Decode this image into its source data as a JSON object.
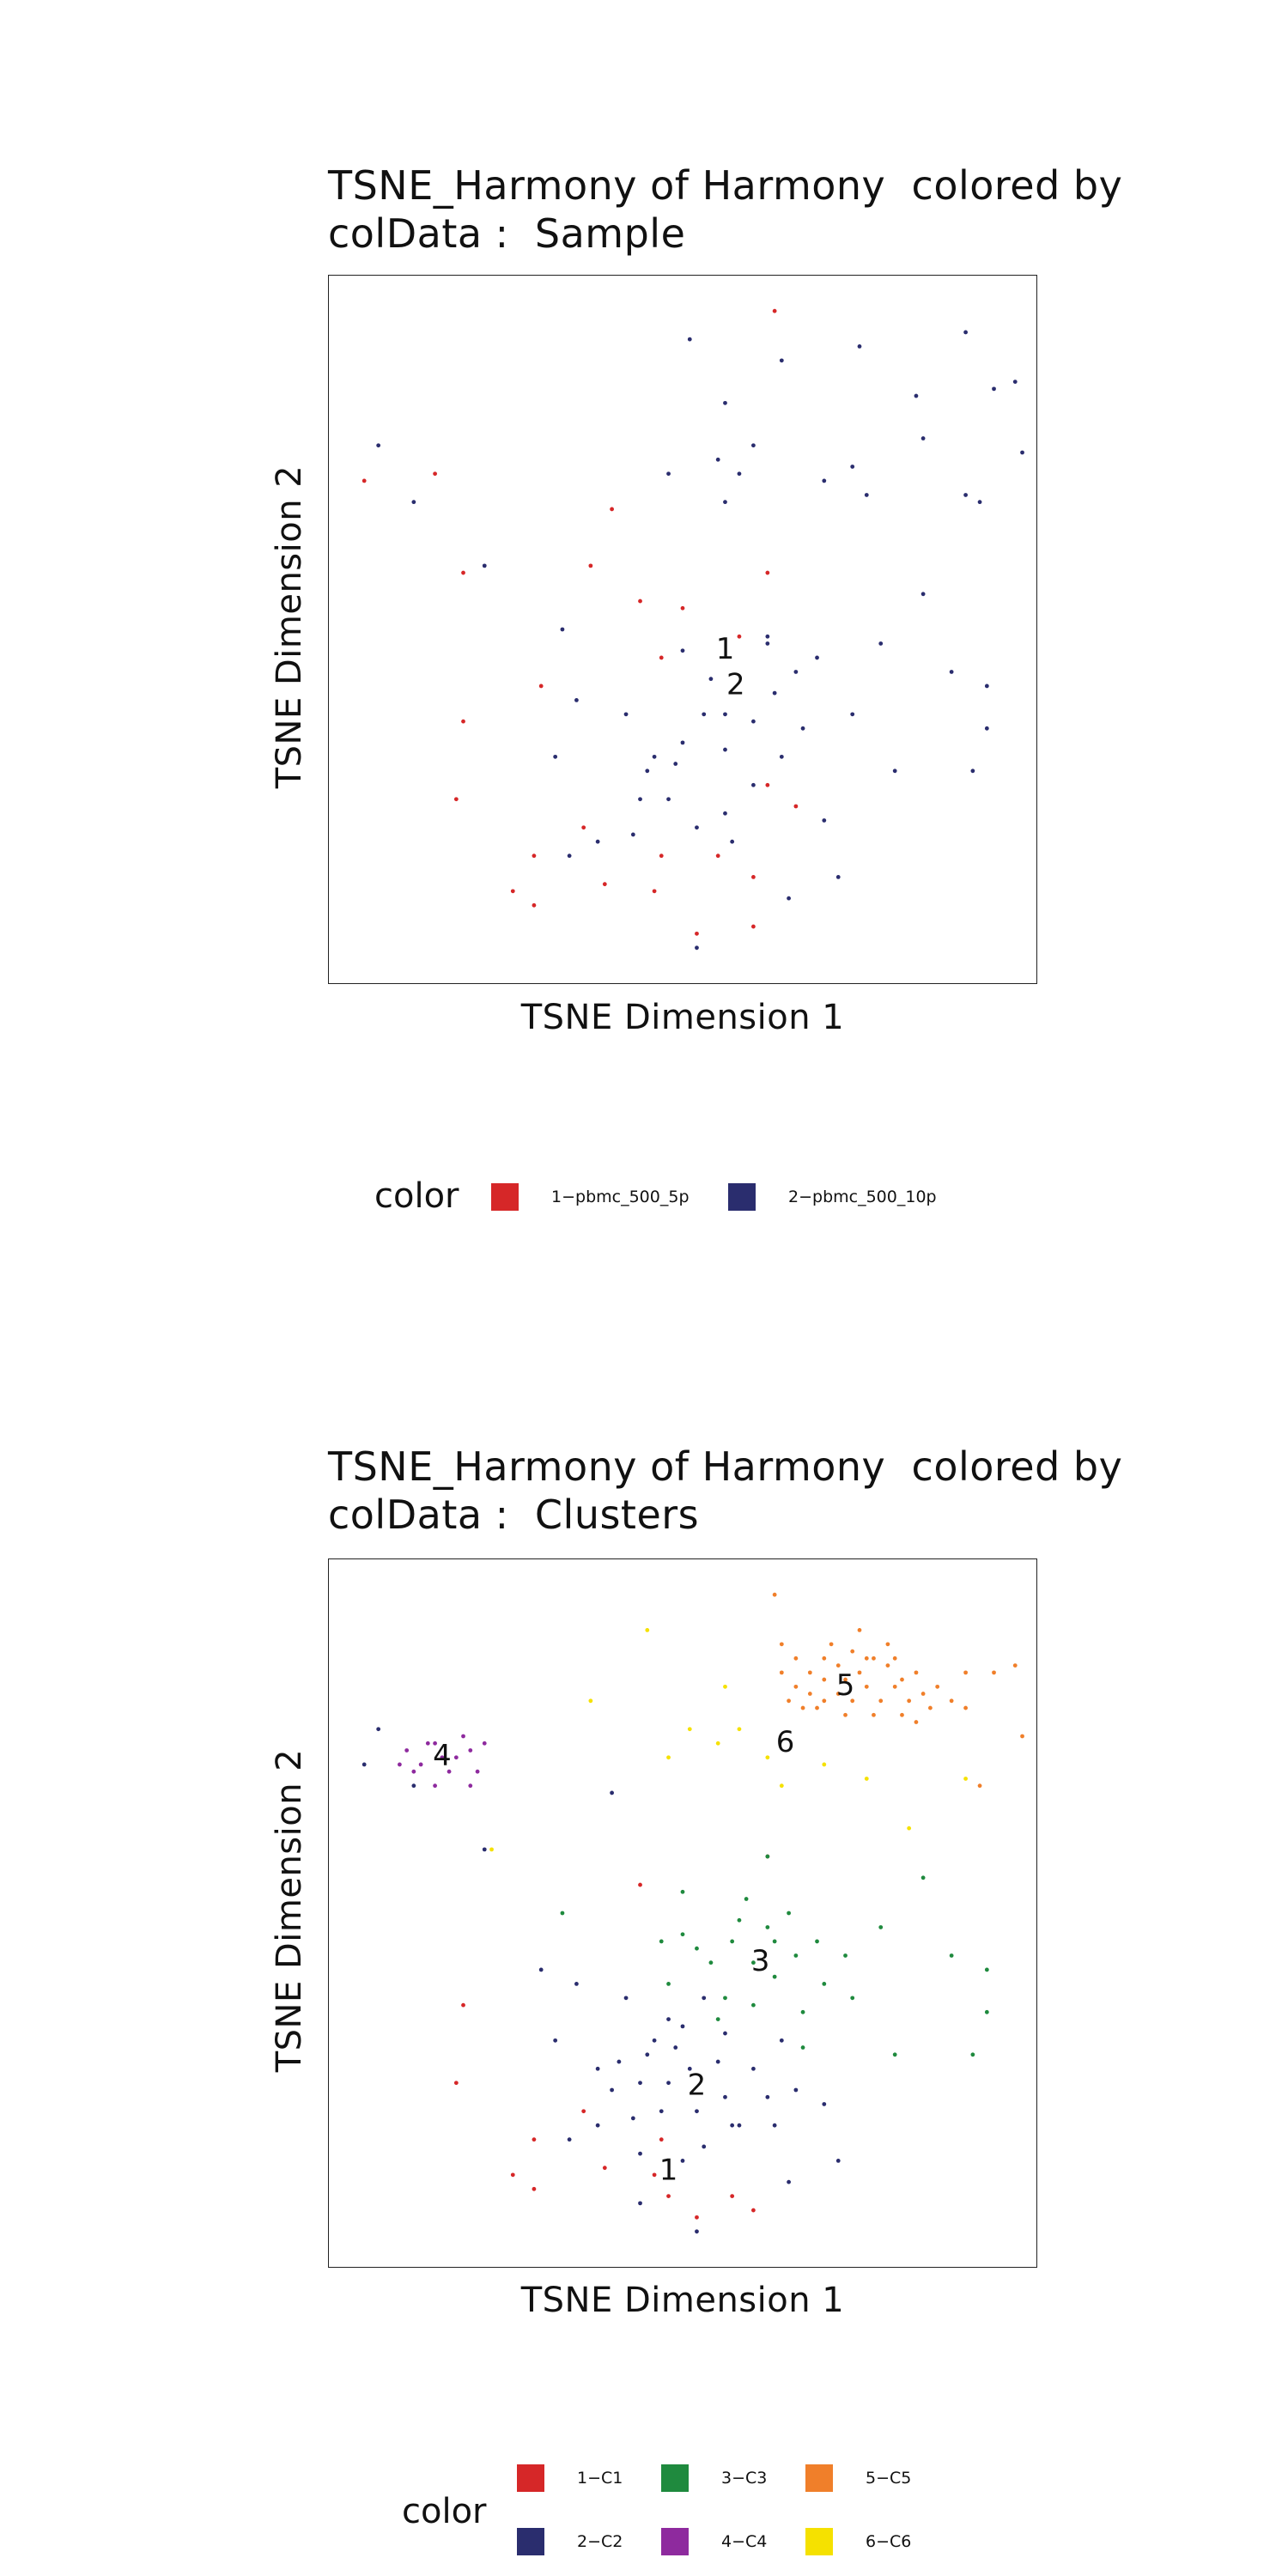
{
  "colors": {
    "c1": "#D62728",
    "c2": "#2A2D6E",
    "c3": "#1F8A3E",
    "c4": "#8E2A9E",
    "c5": "#F07F2A",
    "c6": "#F5E100",
    "axis": "#222222"
  },
  "chart_data": [
    {
      "type": "scatter",
      "title": [
        "TSNE_Harmony of Harmony  colored by",
        "colData :  Sample"
      ],
      "xlabel": "TSNE Dimension 1",
      "ylabel": "TSNE Dimension 2",
      "xlim": [
        0,
        100
      ],
      "ylim": [
        0,
        100
      ],
      "grid": false,
      "legend": {
        "title": "color",
        "placement": "bottom",
        "entries": [
          {
            "label": "1−pbmc_500_5p",
            "color": "#D62728"
          },
          {
            "label": "2−pbmc_500_10p",
            "color": "#2A2D6E"
          }
        ]
      },
      "annotations": [
        {
          "text": "1",
          "x": 56,
          "y": 47
        },
        {
          "text": "2",
          "x": 57.5,
          "y": 42
        }
      ],
      "series": [
        {
          "color_key": "c1",
          "points": [
            [
              63,
              95
            ],
            [
              40,
              67
            ],
            [
              37,
              59
            ],
            [
              62,
              58
            ],
            [
              15,
              72
            ],
            [
              5,
              71
            ],
            [
              19,
              58
            ],
            [
              18,
              26
            ],
            [
              29,
              18
            ],
            [
              29,
              11
            ],
            [
              39,
              14
            ],
            [
              44,
              54
            ],
            [
              50,
              53
            ],
            [
              58,
              49
            ],
            [
              47,
              18
            ],
            [
              52,
              7
            ],
            [
              46,
              13
            ],
            [
              26,
              13
            ],
            [
              36,
              22
            ],
            [
              66,
              25
            ],
            [
              60,
              8
            ],
            [
              30,
              42
            ],
            [
              47,
              46
            ],
            [
              60,
              15
            ],
            [
              19,
              37
            ],
            [
              62,
              28
            ],
            [
              55,
              18
            ]
          ]
        },
        {
          "color_key": "c2",
          "points": [
            [
              75,
              90
            ],
            [
              51,
              91
            ],
            [
              56,
              82
            ],
            [
              64,
              88
            ],
            [
              90,
              92
            ],
            [
              83,
              83
            ],
            [
              97,
              85
            ],
            [
              48,
              72
            ],
            [
              60,
              76
            ],
            [
              76,
              69
            ],
            [
              94,
              84
            ],
            [
              98,
              75
            ],
            [
              90,
              69
            ],
            [
              56,
              68
            ],
            [
              7,
              76
            ],
            [
              12,
              68
            ],
            [
              22,
              59
            ],
            [
              55,
              74
            ],
            [
              58,
              72
            ],
            [
              74,
              73
            ],
            [
              70,
              71
            ],
            [
              84,
              77
            ],
            [
              92,
              68
            ],
            [
              62,
              49
            ],
            [
              33,
              50
            ],
            [
              78,
              48
            ],
            [
              84,
              55
            ],
            [
              88,
              44
            ],
            [
              93,
              42
            ],
            [
              93,
              36
            ],
            [
              91,
              30
            ],
            [
              80,
              30
            ],
            [
              74,
              38
            ],
            [
              70,
              23
            ],
            [
              72,
              15
            ],
            [
              65,
              12
            ],
            [
              57,
              20
            ],
            [
              49,
              31
            ],
            [
              44,
              26
            ],
            [
              42,
              38
            ],
            [
              35,
              40
            ],
            [
              32,
              32
            ],
            [
              34,
              18
            ],
            [
              38,
              20
            ],
            [
              52,
              5
            ],
            [
              50,
              47
            ],
            [
              54,
              43
            ],
            [
              53,
              38
            ],
            [
              50,
              34
            ],
            [
              46,
              32
            ],
            [
              56,
              33
            ],
            [
              60,
              37
            ],
            [
              63,
              41
            ],
            [
              66,
              44
            ],
            [
              67,
              36
            ],
            [
              64,
              32
            ],
            [
              60,
              28
            ],
            [
              56,
              24
            ],
            [
              52,
              22
            ],
            [
              48,
              26
            ],
            [
              45,
              30
            ],
            [
              43,
              21
            ],
            [
              56,
              38
            ],
            [
              69,
              46
            ],
            [
              62,
              48
            ]
          ]
        }
      ]
    },
    {
      "type": "scatter",
      "title": [
        "TSNE_Harmony of Harmony  colored by",
        "colData :  Clusters"
      ],
      "xlabel": "TSNE Dimension 1",
      "ylabel": "TSNE Dimension 2",
      "xlim": [
        0,
        100
      ],
      "ylim": [
        0,
        100
      ],
      "grid": false,
      "legend": {
        "title": "color",
        "placement": "bottom",
        "entries": [
          {
            "label": "1−C1",
            "color": "#D62728"
          },
          {
            "label": "2−C2",
            "color": "#2A2D6E"
          },
          {
            "label": "3−C3",
            "color": "#1F8A3E"
          },
          {
            "label": "4−C4",
            "color": "#8E2A9E"
          },
          {
            "label": "5−C5",
            "color": "#F07F2A"
          },
          {
            "label": "6−C6",
            "color": "#F5E100"
          }
        ]
      },
      "annotations": [
        {
          "text": "5",
          "x": 73,
          "y": 82
        },
        {
          "text": "6",
          "x": 64.5,
          "y": 74
        },
        {
          "text": "4",
          "x": 16,
          "y": 72
        },
        {
          "text": "3",
          "x": 61,
          "y": 43
        },
        {
          "text": "2",
          "x": 52,
          "y": 25.5
        },
        {
          "text": "1",
          "x": 48,
          "y": 13.5
        }
      ],
      "series": [
        {
          "color_key": "c1",
          "points": [
            [
              19,
              37
            ],
            [
              18,
              26
            ],
            [
              29,
              18
            ],
            [
              29,
              11
            ],
            [
              39,
              14
            ],
            [
              47,
              18
            ],
            [
              36,
              22
            ],
            [
              60,
              8
            ],
            [
              52,
              7
            ],
            [
              46,
              13
            ],
            [
              26,
              13
            ],
            [
              62,
              58
            ],
            [
              44,
              54
            ],
            [
              57,
              10
            ],
            [
              48,
              10
            ]
          ]
        },
        {
          "color_key": "c2",
          "points": [
            [
              30,
              42
            ],
            [
              35,
              40
            ],
            [
              32,
              32
            ],
            [
              42,
              38
            ],
            [
              44,
              26
            ],
            [
              49,
              31
            ],
            [
              48,
              26
            ],
            [
              45,
              30
            ],
            [
              43,
              21
            ],
            [
              52,
              22
            ],
            [
              56,
              24
            ],
            [
              60,
              28
            ],
            [
              64,
              32
            ],
            [
              56,
              33
            ],
            [
              53,
              38
            ],
            [
              50,
              34
            ],
            [
              46,
              32
            ],
            [
              34,
              18
            ],
            [
              38,
              20
            ],
            [
              40,
              25
            ],
            [
              47,
              22
            ],
            [
              51,
              28
            ],
            [
              58,
              20
            ],
            [
              62,
              24
            ],
            [
              66,
              25
            ],
            [
              70,
              23
            ],
            [
              72,
              15
            ],
            [
              65,
              12
            ],
            [
              57,
              20
            ],
            [
              50,
              15
            ],
            [
              44,
              16
            ],
            [
              41,
              29
            ],
            [
              55,
              29
            ],
            [
              63,
              20
            ],
            [
              53,
              17
            ],
            [
              38,
              28
            ],
            [
              48,
              35
            ],
            [
              52,
              5
            ],
            [
              44,
              9
            ]
          ]
        },
        {
          "color_key": "c3",
          "points": [
            [
              62,
              58
            ],
            [
              50,
              53
            ],
            [
              58,
              49
            ],
            [
              54,
              43
            ],
            [
              60,
              37
            ],
            [
              63,
              41
            ],
            [
              66,
              44
            ],
            [
              67,
              36
            ],
            [
              74,
              38
            ],
            [
              78,
              48
            ],
            [
              84,
              55
            ],
            [
              88,
              44
            ],
            [
              93,
              42
            ],
            [
              93,
              36
            ],
            [
              91,
              30
            ],
            [
              80,
              30
            ],
            [
              69,
              46
            ],
            [
              62,
              48
            ],
            [
              56,
              38
            ],
            [
              57,
              46
            ],
            [
              65,
              50
            ],
            [
              70,
              40
            ],
            [
              60,
              43
            ],
            [
              52,
              45
            ],
            [
              48,
              40
            ],
            [
              47,
              46
            ],
            [
              63,
              46
            ],
            [
              59,
              52
            ],
            [
              73,
              44
            ],
            [
              55,
              35
            ],
            [
              67,
              31
            ],
            [
              50,
              47
            ],
            [
              33,
              50
            ]
          ]
        },
        {
          "color_key": "c4",
          "points": [
            [
              11,
              73
            ],
            [
              13,
              71
            ],
            [
              15,
              74
            ],
            [
              18,
              72
            ],
            [
              20,
              73
            ],
            [
              21,
              70
            ],
            [
              17,
              70
            ],
            [
              14,
              74
            ],
            [
              12,
              70
            ],
            [
              22,
              74
            ],
            [
              16,
              72
            ],
            [
              19,
              75
            ],
            [
              10,
              71
            ],
            [
              15,
              68
            ],
            [
              20,
              68
            ]
          ]
        },
        {
          "color_key": "c5",
          "points": [
            [
              63,
              95
            ],
            [
              64,
              88
            ],
            [
              66,
              86
            ],
            [
              68,
              84
            ],
            [
              70,
              86
            ],
            [
              72,
              85
            ],
            [
              74,
              87
            ],
            [
              75,
              84
            ],
            [
              77,
              86
            ],
            [
              79,
              85
            ],
            [
              81,
              83
            ],
            [
              83,
              84
            ],
            [
              84,
              81
            ],
            [
              82,
              80
            ],
            [
              80,
              82
            ],
            [
              78,
              80
            ],
            [
              76,
              82
            ],
            [
              74,
              80
            ],
            [
              72,
              81
            ],
            [
              70,
              83
            ],
            [
              68,
              81
            ],
            [
              66,
              82
            ],
            [
              64,
              84
            ],
            [
              65,
              80
            ],
            [
              69,
              79
            ],
            [
              73,
              78
            ],
            [
              77,
              78
            ],
            [
              81,
              78
            ],
            [
              83,
              77
            ],
            [
              75,
              90
            ],
            [
              71,
              88
            ],
            [
              79,
              88
            ],
            [
              86,
              82
            ],
            [
              90,
              84
            ],
            [
              94,
              84
            ],
            [
              97,
              85
            ],
            [
              90,
              79
            ],
            [
              98,
              75
            ],
            [
              92,
              68
            ],
            [
              70,
              80
            ],
            [
              73,
              83
            ],
            [
              76,
              86
            ],
            [
              80,
              86
            ],
            [
              85,
              79
            ],
            [
              67,
              79
            ],
            [
              88,
              80
            ]
          ]
        },
        {
          "color_key": "c6",
          "points": [
            [
              45,
              90
            ],
            [
              56,
              82
            ],
            [
              37,
              80
            ],
            [
              51,
              76
            ],
            [
              48,
              72
            ],
            [
              62,
              72
            ],
            [
              70,
              71
            ],
            [
              64,
              68
            ],
            [
              76,
              69
            ],
            [
              90,
              69
            ],
            [
              82,
              62
            ],
            [
              23,
              59
            ],
            [
              55,
              74
            ],
            [
              58,
              76
            ]
          ]
        },
        {
          "color_key": "c2",
          "points": [
            [
              5,
              71
            ],
            [
              7,
              76
            ],
            [
              12,
              68
            ],
            [
              40,
              67
            ],
            [
              22,
              59
            ]
          ]
        }
      ]
    }
  ]
}
